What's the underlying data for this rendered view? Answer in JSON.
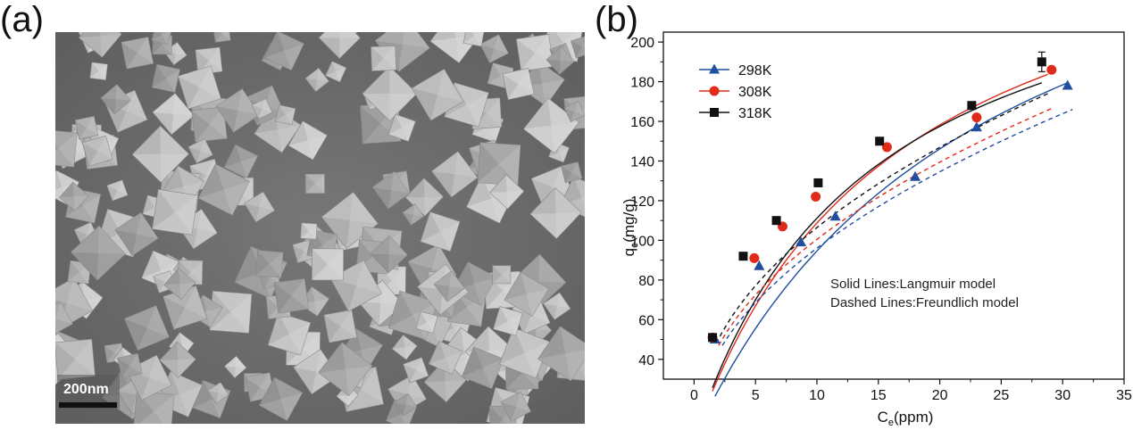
{
  "panel_a": {
    "label": "(a)",
    "scale_bar_text": "200nm",
    "background_color": "#6e6e6e",
    "particle_color": "#bdbdbd"
  },
  "panel_b": {
    "label": "(b)"
  },
  "chart_data": {
    "type": "scatter",
    "title": "",
    "xlabel_main": "C",
    "xlabel_sub": "e",
    "xlabel_unit": "(ppm)",
    "ylabel_main": "q",
    "ylabel_sub": "e",
    "ylabel_unit": "(mg/g)",
    "xlim": [
      -2.5,
      35
    ],
    "ylim": [
      30,
      205
    ],
    "x_ticks": [
      0,
      5,
      10,
      15,
      20,
      25,
      30,
      35
    ],
    "y_ticks": [
      40,
      60,
      80,
      100,
      120,
      140,
      160,
      180,
      200
    ],
    "legend_position": "top-left",
    "annotations": [
      "Solid Lines:Langmuir model",
      "Dashed Lines:Freundlich model"
    ],
    "series": [
      {
        "name": "298K",
        "color": "#1f4e9e",
        "marker": "triangle",
        "x": [
          1.7,
          5.3,
          8.7,
          11.5,
          18.0,
          23.0,
          30.4
        ],
        "y": [
          50,
          87,
          99,
          112,
          132,
          157,
          178
        ]
      },
      {
        "name": "308K",
        "color": "#e02a1a",
        "marker": "circle",
        "x": [
          1.5,
          4.9,
          7.2,
          9.9,
          15.7,
          23.0,
          29.1
        ],
        "y": [
          51,
          91,
          107,
          122,
          147,
          162,
          186
        ]
      },
      {
        "name": "318K",
        "color": "#111111",
        "marker": "square",
        "x": [
          1.5,
          4.0,
          6.7,
          10.1,
          15.1,
          22.6,
          28.3
        ],
        "y": [
          51,
          92,
          110,
          129,
          150,
          168,
          190
        ]
      }
    ],
    "models": [
      {
        "series": "298K",
        "type": "Langmuir",
        "qm": 320,
        "K": 0.042,
        "x_range": [
          1.7,
          30.4
        ]
      },
      {
        "series": "308K",
        "type": "Langmuir",
        "qm": 290,
        "K": 0.06,
        "x_range": [
          1.5,
          28.8
        ]
      },
      {
        "series": "318K",
        "type": "Langmuir",
        "qm": 270,
        "K": 0.07,
        "x_range": [
          1.5,
          28.3
        ]
      },
      {
        "series": "298K",
        "type": "Freundlich",
        "x_range": [
          2.3,
          30.8
        ],
        "y_start": 47,
        "y_end": 166
      },
      {
        "series": "308K",
        "type": "Freundlich",
        "x_range": [
          2.0,
          29.3
        ],
        "y_start": 47,
        "y_end": 167
      },
      {
        "series": "318K",
        "type": "Freundlich",
        "x_range": [
          1.8,
          28.8
        ],
        "y_start": 48,
        "y_end": 174
      }
    ]
  }
}
